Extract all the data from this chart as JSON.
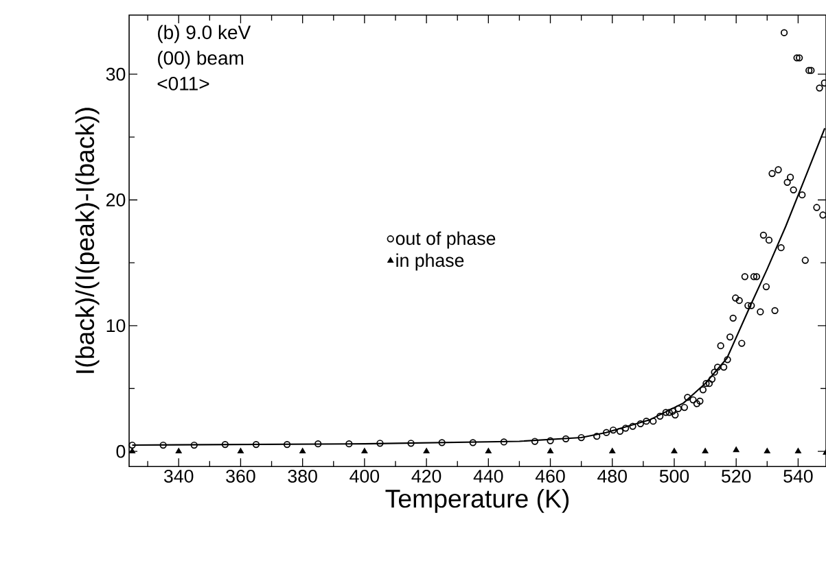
{
  "chart_data": {
    "type": "scatter",
    "xlabel": "Temperature (K)",
    "ylabel": "I(back)/(I(peak)-I(back))",
    "annotations": [
      "(b) 9.0 keV",
      "(00) beam",
      "<011>"
    ],
    "xlim": [
      324,
      549
    ],
    "ylim": [
      -1.2,
      34.7
    ],
    "xticks": [
      340,
      360,
      380,
      400,
      420,
      440,
      460,
      480,
      500,
      520,
      540,
      {
        "value": 330,
        "label": null
      },
      {
        "value": 350,
        "label": null
      },
      {
        "value": 370,
        "label": null
      },
      {
        "value": 390,
        "label": null
      },
      {
        "value": 410,
        "label": null
      },
      {
        "value": 430,
        "label": null
      },
      {
        "value": 450,
        "label": null
      },
      {
        "value": 470,
        "label": null
      },
      {
        "value": 490,
        "label": null
      },
      {
        "value": 510,
        "label": null
      },
      {
        "value": 530,
        "label": null
      }
    ],
    "yticks": [
      0,
      10,
      20,
      30,
      {
        "value": 5,
        "label": null
      },
      {
        "value": 15,
        "label": null
      },
      {
        "value": 25,
        "label": null
      }
    ],
    "legend": "center",
    "grid": false,
    "series": [
      {
        "name": "out of phase",
        "color": "#000000",
        "marker": "circle",
        "x": [
          325,
          335,
          345,
          355,
          365,
          375,
          385,
          395,
          405,
          415,
          425,
          435,
          445,
          455,
          460,
          465,
          470,
          475,
          478.1,
          480.3,
          482.5,
          484.3,
          486.6,
          489.1,
          491.0,
          493.2,
          495.4,
          497.3,
          498.4,
          499.5,
          500.3,
          501.3,
          503.3,
          504.3,
          506.1,
          507.3,
          508.3,
          509.3,
          510.3,
          511.3,
          512.2,
          513.0,
          514.0,
          515.0,
          516.0,
          517.2,
          518.0,
          519.0,
          519.8,
          521.0,
          521.8,
          522.8,
          523.8,
          524.9,
          525.7,
          526.6,
          527.8,
          528.8,
          529.7,
          530.6,
          531.6,
          532.5,
          533.6,
          534.5,
          535.5,
          536.5,
          537.5,
          538.5,
          539.6,
          540.4,
          541.3,
          542.3,
          543.5,
          544.2,
          546.0,
          546.9,
          548.0,
          548.5
        ],
        "values": [
          0.5,
          0.5,
          0.5,
          0.55,
          0.55,
          0.55,
          0.6,
          0.6,
          0.65,
          0.65,
          0.7,
          0.7,
          0.75,
          0.8,
          0.85,
          1.0,
          1.1,
          1.2,
          1.5,
          1.7,
          1.6,
          1.85,
          2.0,
          2.2,
          2.4,
          2.4,
          2.8,
          3.1,
          3.1,
          3.2,
          2.9,
          3.4,
          3.5,
          4.3,
          4.1,
          3.8,
          4.0,
          4.9,
          5.4,
          5.4,
          5.75,
          6.3,
          6.7,
          8.4,
          6.7,
          7.3,
          9.1,
          10.6,
          12.2,
          12.0,
          8.6,
          13.9,
          11.6,
          11.6,
          13.9,
          13.9,
          11.1,
          17.2,
          13.1,
          16.8,
          22.1,
          11.2,
          22.4,
          16.2,
          33.3,
          21.4,
          21.8,
          20.8,
          31.3,
          31.3,
          20.4,
          15.2,
          30.3,
          30.3,
          19.4,
          28.9,
          18.8,
          29.3
        ]
      },
      {
        "name": "in phase",
        "color": "#000000",
        "marker": "triangle",
        "x": [
          325,
          340,
          360,
          380,
          400,
          420,
          440,
          460,
          480,
          500,
          510,
          520,
          530,
          540,
          549
        ],
        "values": [
          0.0,
          0.0,
          0.0,
          0.0,
          0.0,
          0.0,
          0.0,
          0.0,
          0.0,
          0.0,
          0.0,
          0.1,
          0.0,
          0.0,
          -0.1
        ]
      },
      {
        "type": "line",
        "color": "#000000",
        "marker": "none",
        "line_style": "solid",
        "x": [
          325,
          400,
          450,
          470,
          478,
          492,
          503,
          510,
          517,
          524.6,
          530,
          536,
          542,
          548.6
        ],
        "values": [
          0.5,
          0.6,
          0.8,
          1.1,
          1.5,
          2.5,
          3.85,
          5.4,
          7.4,
          11.6,
          14.5,
          17.9,
          21.6,
          25.7
        ]
      }
    ]
  }
}
